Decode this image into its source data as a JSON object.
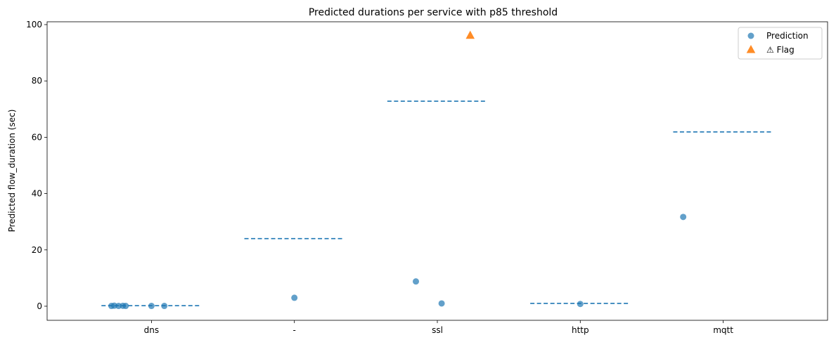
{
  "chart_data": {
    "type": "scatter",
    "title": "Predicted durations per service with p85 threshold",
    "xlabel": "",
    "ylabel": "Predicted flow_duration (sec)",
    "categories": [
      "dns",
      "-",
      "ssl",
      "http",
      "mqtt"
    ],
    "ylim": [
      -5,
      101
    ],
    "yticks": [
      0,
      20,
      40,
      60,
      80,
      100
    ],
    "grid": false,
    "legend_position": "top-right",
    "series": [
      {
        "name": "Prediction",
        "marker": "circle",
        "color": "#1f77b4",
        "points": [
          {
            "category": "dns",
            "offset": -0.28,
            "y": 0.1
          },
          {
            "category": "dns",
            "offset": -0.26,
            "y": 0.2
          },
          {
            "category": "dns",
            "offset": -0.23,
            "y": 0.1
          },
          {
            "category": "dns",
            "offset": -0.2,
            "y": 0.15
          },
          {
            "category": "dns",
            "offset": -0.18,
            "y": 0.1
          },
          {
            "category": "dns",
            "offset": 0.0,
            "y": 0.1
          },
          {
            "category": "dns",
            "offset": 0.09,
            "y": 0.1
          },
          {
            "category": "-",
            "offset": 0.0,
            "y": 3.0
          },
          {
            "category": "ssl",
            "offset": -0.15,
            "y": 8.8
          },
          {
            "category": "ssl",
            "offset": 0.03,
            "y": 1.0
          },
          {
            "category": "http",
            "offset": 0.0,
            "y": 0.8
          },
          {
            "category": "mqtt",
            "offset": -0.28,
            "y": 31.7
          }
        ]
      },
      {
        "name": "⚠ Flag",
        "marker": "triangle",
        "color": "#ff7f0e",
        "points": [
          {
            "category": "ssl",
            "offset": 0.23,
            "y": 96.1
          }
        ]
      }
    ],
    "thresholds": {
      "label": "p85",
      "color": "#1f77b4",
      "style": "dashed",
      "half_width": 0.35,
      "values": [
        {
          "category": "dns",
          "y": 0.2
        },
        {
          "category": "-",
          "y": 24.0
        },
        {
          "category": "ssl",
          "y": 72.8
        },
        {
          "category": "http",
          "y": 1.0
        },
        {
          "category": "mqtt",
          "y": 61.9
        }
      ]
    }
  }
}
